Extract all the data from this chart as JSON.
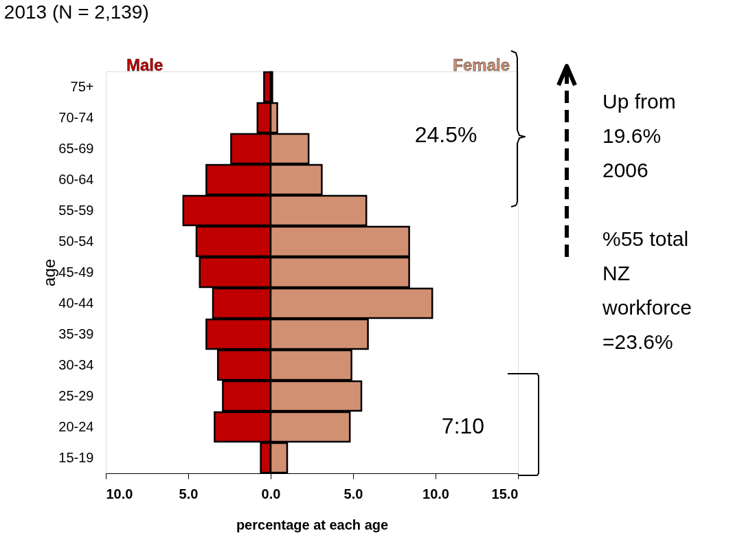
{
  "chart_data": {
    "type": "bar",
    "orientation": "horizontal",
    "stacked": true,
    "title": "2013 (N = 2,139)",
    "xlabel": "percentage at each age",
    "ylabel": "age",
    "categories": [
      "75+",
      "70-74",
      "65-69",
      "60-64",
      "55-59",
      "50-54",
      "45-49",
      "40-44",
      "35-39",
      "30-34",
      "25-29",
      "20-24",
      "15-19"
    ],
    "series": [
      {
        "name": "Male",
        "color": "#c00000",
        "values": [
          -0.4,
          -0.8,
          -2.4,
          -3.9,
          -5.3,
          -4.5,
          -4.3,
          -3.5,
          -3.9,
          -3.2,
          -2.9,
          -3.4,
          -0.6
        ]
      },
      {
        "name": "Female",
        "color": "#d29073",
        "values": [
          0.1,
          0.4,
          2.3,
          3.1,
          5.8,
          8.4,
          8.4,
          9.8,
          5.9,
          4.9,
          5.5,
          4.8,
          1.0
        ]
      }
    ],
    "xlim": [
      -10,
      15
    ],
    "xticks": [
      {
        "value": -10,
        "label": "10.0"
      },
      {
        "value": -5,
        "label": "5.0"
      },
      {
        "value": 0,
        "label": "0.0"
      },
      {
        "value": 5,
        "label": "5.0"
      },
      {
        "value": 10,
        "label": "10.0"
      },
      {
        "value": 15,
        "label": "15.0"
      }
    ],
    "annotations": [
      "24.5%",
      "7:10",
      "Up from\n19.6%\n2006",
      "%55 total\nNZ\nworkforce\n=23.6%"
    ]
  }
}
